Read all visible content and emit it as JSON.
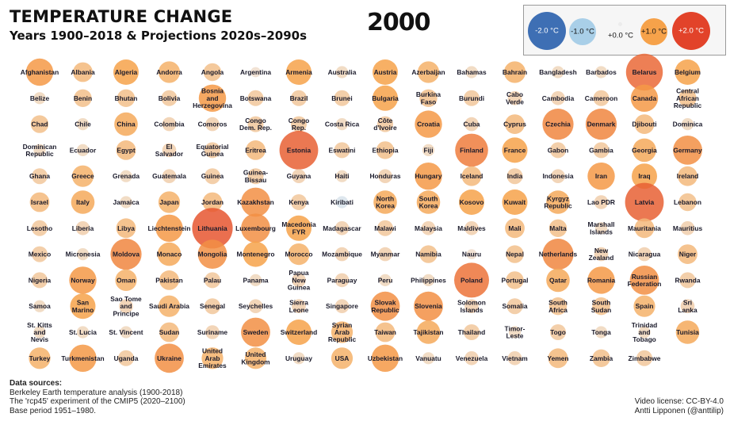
{
  "title": "TEMPERATURE CHANGE",
  "subtitle": "Years 1900–2018 & Projections 2020s–2090s",
  "year": "2000",
  "legend": {
    "items": [
      {
        "label": "-2.0 °C",
        "value": -2.0,
        "color": "#3e6fb4"
      },
      {
        "label": "-1.0 °C",
        "value": -1.0,
        "color": "#a9cfe8"
      },
      {
        "label": "+0.0 °C",
        "value": 0.0,
        "color": "#ececec"
      },
      {
        "label": "+1.0 °C",
        "value": 1.0,
        "color": "#f6a24a"
      },
      {
        "label": "+2.0 °C",
        "value": 2.0,
        "color": "#e2432a"
      }
    ]
  },
  "sources": {
    "heading": "Data sources:",
    "line1": "Berkeley Earth temperature analysis (1900-2018)",
    "line2": "The 'rcp45' experiment of the CMIP5 (2020–2100)",
    "line3": "Base period 1951–1980."
  },
  "license": {
    "line1": "Video license: CC-BY-4.0",
    "line2": "Antti Lipponen (@anttilip)"
  },
  "chart_data": {
    "type": "bubble-grid",
    "year": "2000",
    "unit": "°C",
    "value_range": [
      -2.0,
      2.0
    ],
    "rows": [
      [
        [
          "Afghanistan",
          1.1
        ],
        [
          "Albania",
          0.7
        ],
        [
          "Algeria",
          1.0
        ],
        [
          "Andorra",
          0.8
        ],
        [
          "Angola",
          0.6
        ],
        [
          "Argentina",
          0.2
        ],
        [
          "Armenia",
          1.0
        ],
        [
          "Australia",
          0.3
        ],
        [
          "Austria",
          1.0
        ],
        [
          "Azerbaijan",
          0.8
        ],
        [
          "Bahamas",
          0.3
        ],
        [
          "Bahrain",
          0.8
        ],
        [
          "Bangladesh",
          0.3
        ],
        [
          "Barbados",
          0.3
        ],
        [
          "Belarus",
          1.6
        ],
        [
          "Belgium",
          1.0
        ]
      ],
      [
        [
          "Belize",
          0.3
        ],
        [
          "Benin",
          0.6
        ],
        [
          "Bhutan",
          0.6
        ],
        [
          "Bolivia",
          0.5
        ],
        [
          "Bosnia\nand\nHerzegovina",
          1.1
        ],
        [
          "Botswana",
          0.5
        ],
        [
          "Brazil",
          0.5
        ],
        [
          "Brunei",
          0.5
        ],
        [
          "Bulgaria",
          1.0
        ],
        [
          "Burkina\nFaso",
          0.6
        ],
        [
          "Burundi",
          0.5
        ],
        [
          "Cabo\nVerde",
          0.4
        ],
        [
          "Cambodia",
          0.4
        ],
        [
          "Cameroon",
          0.5
        ],
        [
          "Canada",
          1.1
        ],
        [
          "Central\nAfrican\nRepublic",
          0.6
        ]
      ],
      [
        [
          "Chad",
          0.6
        ],
        [
          "Chile",
          0.3
        ],
        [
          "China",
          0.9
        ],
        [
          "Colombia",
          0.4
        ],
        [
          "Comoros",
          0.4
        ],
        [
          "Congo\nDem. Rep.",
          0.5
        ],
        [
          "Congo\nRep.",
          0.5
        ],
        [
          "Costa Rica",
          0.3
        ],
        [
          "Côte\nd'Ivoire",
          0.5
        ],
        [
          "Croatia",
          1.1
        ],
        [
          "Cuba",
          0.4
        ],
        [
          "Cyprus",
          0.7
        ],
        [
          "Czechia",
          1.3
        ],
        [
          "Denmark",
          1.3
        ],
        [
          "Djibouti",
          0.7
        ],
        [
          "Dominica",
          0.3
        ]
      ],
      [
        [
          "Dominican\nRepublic",
          0.3
        ],
        [
          "Ecuador",
          0.3
        ],
        [
          "Egypt",
          0.7
        ],
        [
          "El\nSalvador",
          0.4
        ],
        [
          "Equatorial\nGuinea",
          0.5
        ],
        [
          "Eritrea",
          0.7
        ],
        [
          "Estonia",
          1.7
        ],
        [
          "Eswatini",
          0.5
        ],
        [
          "Ethiopia",
          0.6
        ],
        [
          "Fiji",
          0.3
        ],
        [
          "Finland",
          1.4
        ],
        [
          "France",
          1.0
        ],
        [
          "Gabon",
          0.5
        ],
        [
          "Gambia",
          0.5
        ],
        [
          "Georgia",
          0.9
        ],
        [
          "Germany",
          1.2
        ]
      ],
      [
        [
          "Ghana",
          0.5
        ],
        [
          "Greece",
          0.8
        ],
        [
          "Grenada",
          0.3
        ],
        [
          "Guatemala",
          0.4
        ],
        [
          "Guinea",
          0.5
        ],
        [
          "Guinea-\nBissau",
          0.5
        ],
        [
          "Guyana",
          0.4
        ],
        [
          "Haiti",
          0.3
        ],
        [
          "Honduras",
          0.4
        ],
        [
          "Hungary",
          1.1
        ],
        [
          "Iceland",
          0.7
        ],
        [
          "India",
          0.5
        ],
        [
          "Indonesia",
          0.4
        ],
        [
          "Iran",
          1.1
        ],
        [
          "Iraq",
          1.0
        ],
        [
          "Ireland",
          0.7
        ]
      ],
      [
        [
          "Israel",
          0.7
        ],
        [
          "Italy",
          0.9
        ],
        [
          "Jamaica",
          0.3
        ],
        [
          "Japan",
          0.8
        ],
        [
          "Jordan",
          0.7
        ],
        [
          "Kazakhstan",
          1.2
        ],
        [
          "Kenya",
          0.5
        ],
        [
          "Kiribati",
          -0.3
        ],
        [
          "North\nKorea",
          0.9
        ],
        [
          "South\nKorea",
          0.9
        ],
        [
          "Kosovo",
          1.0
        ],
        [
          "Kuwait",
          1.0
        ],
        [
          "Kyrgyz\nRepublic",
          0.9
        ],
        [
          "Lao PDR",
          0.4
        ],
        [
          "Latvia",
          1.7
        ],
        [
          "Lebanon",
          0.6
        ]
      ],
      [
        [
          "Lesotho",
          0.5
        ],
        [
          "Liberia",
          0.4
        ],
        [
          "Libya",
          0.7
        ],
        [
          "Liechtenstein",
          1.1
        ],
        [
          "Lithuania",
          1.8
        ],
        [
          "Luxembourg",
          1.2
        ],
        [
          "Macedonia\nFYR",
          1.0
        ],
        [
          "Madagascar",
          0.4
        ],
        [
          "Malawi",
          0.5
        ],
        [
          "Malaysia",
          0.4
        ],
        [
          "Maldives",
          0.4
        ],
        [
          "Mali",
          0.7
        ],
        [
          "Malta",
          0.6
        ],
        [
          "Marshall\nIslands",
          0.3
        ],
        [
          "Mauritania",
          0.7
        ],
        [
          "Mauritius",
          0.4
        ]
      ],
      [
        [
          "Mexico",
          0.5
        ],
        [
          "Micronesia",
          0.3
        ],
        [
          "Moldova",
          1.3
        ],
        [
          "Monaco",
          0.9
        ],
        [
          "Mongolia",
          1.2
        ],
        [
          "Montenegro",
          1.0
        ],
        [
          "Morocco",
          0.8
        ],
        [
          "Mozambique",
          0.4
        ],
        [
          "Myanmar",
          0.4
        ],
        [
          "Namibia",
          0.6
        ],
        [
          "Nauru",
          0.2
        ],
        [
          "Nepal",
          0.6
        ],
        [
          "Netherlands",
          1.3
        ],
        [
          "New\nZealand",
          0.4
        ],
        [
          "Nicaragua",
          0.4
        ],
        [
          "Niger",
          0.7
        ]
      ],
      [
        [
          "Nigeria",
          0.5
        ],
        [
          "Norway",
          1.1
        ],
        [
          "Oman",
          0.8
        ],
        [
          "Pakistan",
          0.7
        ],
        [
          "Palau",
          0.5
        ],
        [
          "Panama",
          0.3
        ],
        [
          "Papua\nNew\nGuinea",
          0.4
        ],
        [
          "Paraguay",
          0.4
        ],
        [
          "Peru",
          0.3
        ],
        [
          "Philippines",
          0.3
        ],
        [
          "Poland",
          1.5
        ],
        [
          "Portugal",
          0.6
        ],
        [
          "Qatar",
          0.9
        ],
        [
          "Romania",
          1.1
        ],
        [
          "Russian\nFederation",
          1.2
        ],
        [
          "Rwanda",
          0.5
        ]
      ],
      [
        [
          "Samoa",
          0.3
        ],
        [
          "San\nMarino",
          1.0
        ],
        [
          "Sao Tome\nand\nPrincipe",
          0.4
        ],
        [
          "Saudi Arabia",
          0.8
        ],
        [
          "Senegal",
          0.5
        ],
        [
          "Seychelles",
          0.4
        ],
        [
          "Sierra\nLeone",
          0.4
        ],
        [
          "Singapore",
          0.4
        ],
        [
          "Slovak\nRepublic",
          1.2
        ],
        [
          "Slovenia",
          1.2
        ],
        [
          "Solomon\nIslands",
          0.4
        ],
        [
          "Somalia",
          0.5
        ],
        [
          "South\nAfrica",
          0.6
        ],
        [
          "South\nSudan",
          0.6
        ],
        [
          "Spain",
          0.8
        ],
        [
          "Sri\nLanka",
          0.4
        ]
      ],
      [
        [
          "St. Kitts\nand\nNevis",
          0.3
        ],
        [
          "St. Lucia",
          0.3
        ],
        [
          "St. Vincent",
          0.3
        ],
        [
          "Sudan",
          0.7
        ],
        [
          "Suriname",
          0.4
        ],
        [
          "Sweden",
          1.2
        ],
        [
          "Switzerland",
          1.0
        ],
        [
          "Syrian\nArab\nRepublic",
          0.8
        ],
        [
          "Taiwan",
          0.7
        ],
        [
          "Tajikistan",
          0.9
        ],
        [
          "Thailand",
          0.5
        ],
        [
          "Timor-\nLeste",
          0.3
        ],
        [
          "Togo",
          0.5
        ],
        [
          "Tonga",
          0.3
        ],
        [
          "Trinidad\nand\nTobago",
          0.3
        ],
        [
          "Tunisia",
          0.9
        ]
      ],
      [
        [
          "Turkey",
          0.8
        ],
        [
          "Turkmenistan",
          1.1
        ],
        [
          "Uganda",
          0.5
        ],
        [
          "Ukraine",
          1.2
        ],
        [
          "United\nArab\nEmirates",
          0.8
        ],
        [
          "United\nKingdom",
          0.8
        ],
        [
          "Uruguay",
          0.3
        ],
        [
          "USA",
          0.8
        ],
        [
          "Uzbekistan",
          1.1
        ],
        [
          "Vanuatu",
          0.3
        ],
        [
          "Venezuela",
          0.4
        ],
        [
          "Vietnam",
          0.4
        ],
        [
          "Yemen",
          0.7
        ],
        [
          "Zambia",
          0.6
        ],
        [
          "Zimbabwe",
          0.5
        ]
      ]
    ]
  }
}
